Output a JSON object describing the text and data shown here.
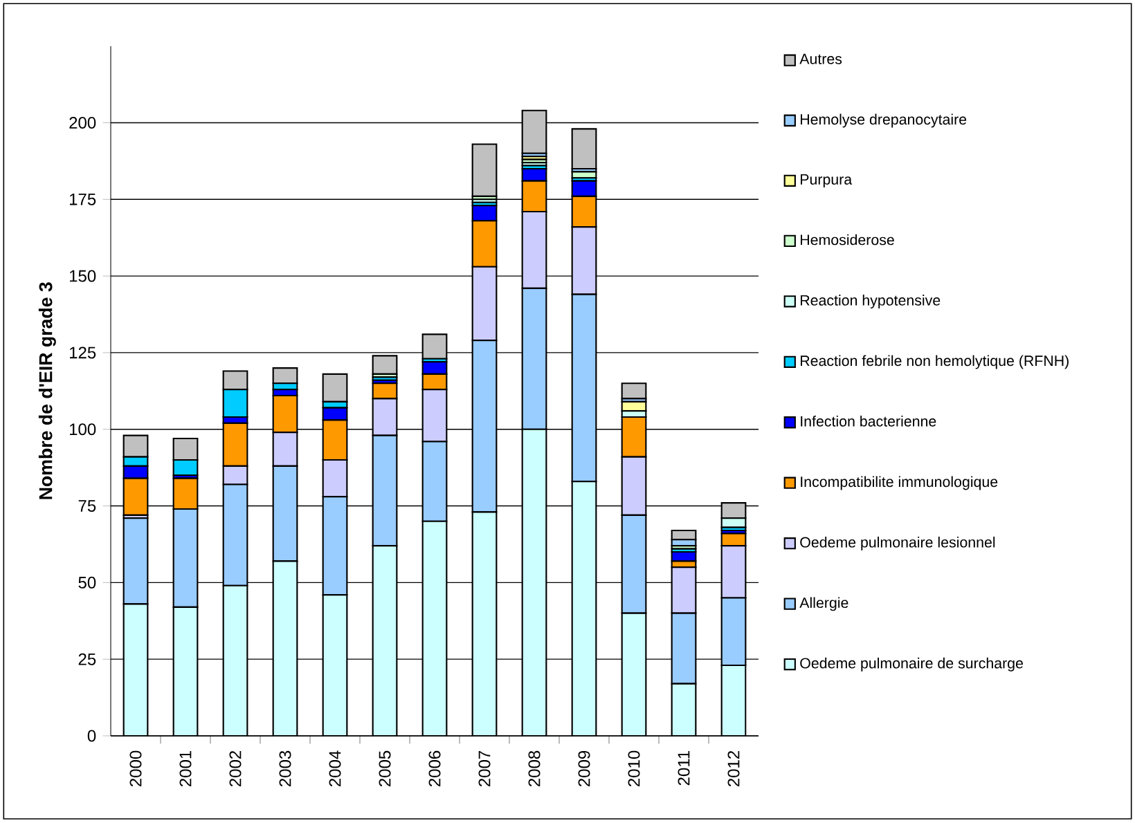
{
  "chart_data": {
    "type": "bar",
    "stacked": true,
    "ylabel": "Nombre de d'EIR grade 3",
    "categories": [
      "2000",
      "2001",
      "2002",
      "2003",
      "2004",
      "2005",
      "2006",
      "2007",
      "2008",
      "2009",
      "2010",
      "2011",
      "2012"
    ],
    "series": [
      {
        "name": "Oedeme pulmonaire de surcharge",
        "color": "#ccffff",
        "values": [
          43,
          42,
          49,
          57,
          46,
          62,
          70,
          73,
          100,
          83,
          40,
          17,
          23
        ]
      },
      {
        "name": "Allergie",
        "color": "#99ccff",
        "values": [
          28,
          32,
          33,
          31,
          32,
          36,
          26,
          56,
          46,
          61,
          32,
          23,
          22
        ]
      },
      {
        "name": "Oedeme pulmonaire lesionnel",
        "color": "#ccccff",
        "values": [
          1,
          0,
          6,
          11,
          12,
          12,
          17,
          24,
          25,
          22,
          19,
          15,
          17
        ]
      },
      {
        "name": "Incompatibilite immunologique",
        "color": "#ff9900",
        "values": [
          12,
          10,
          14,
          12,
          13,
          5,
          5,
          15,
          10,
          10,
          13,
          2,
          4
        ]
      },
      {
        "name": "Infection bacterienne",
        "color": "#0000ff",
        "values": [
          4,
          1,
          2,
          2,
          4,
          1,
          4,
          5,
          4,
          5,
          0,
          3,
          1
        ]
      },
      {
        "name": "Reaction febrile non hemolytique (RFNH)",
        "color": "#00ccff",
        "values": [
          3,
          5,
          9,
          2,
          2,
          1,
          1,
          1,
          1,
          1,
          0,
          1,
          1
        ]
      },
      {
        "name": "Reaction hypotensive",
        "color": "#ccfff5",
        "values": [
          0,
          0,
          0,
          0,
          0,
          0,
          0,
          1,
          1,
          0,
          2,
          0,
          3
        ]
      },
      {
        "name": "Hemosiderose",
        "color": "#ccffcc",
        "values": [
          0,
          0,
          0,
          0,
          0,
          1,
          0,
          1,
          1,
          2,
          0,
          1,
          0
        ]
      },
      {
        "name": "Purpura",
        "color": "#ffff99",
        "values": [
          0,
          0,
          0,
          0,
          0,
          0,
          0,
          0,
          1,
          0,
          3,
          0,
          0
        ]
      },
      {
        "name": "Hemolyse drepanocytaire",
        "color": "#99ccff",
        "values": [
          0,
          0,
          0,
          0,
          0,
          0,
          0,
          0,
          1,
          1,
          1,
          2,
          0
        ]
      },
      {
        "name": "Autres",
        "color": "#c0c0c0",
        "values": [
          7,
          7,
          6,
          5,
          9,
          6,
          8,
          17,
          14,
          13,
          5,
          3,
          5
        ]
      }
    ],
    "ylim": [
      0,
      225
    ],
    "yticks": [
      0,
      25,
      50,
      75,
      100,
      125,
      150,
      175,
      200
    ],
    "grid": "y",
    "legend": "right"
  }
}
